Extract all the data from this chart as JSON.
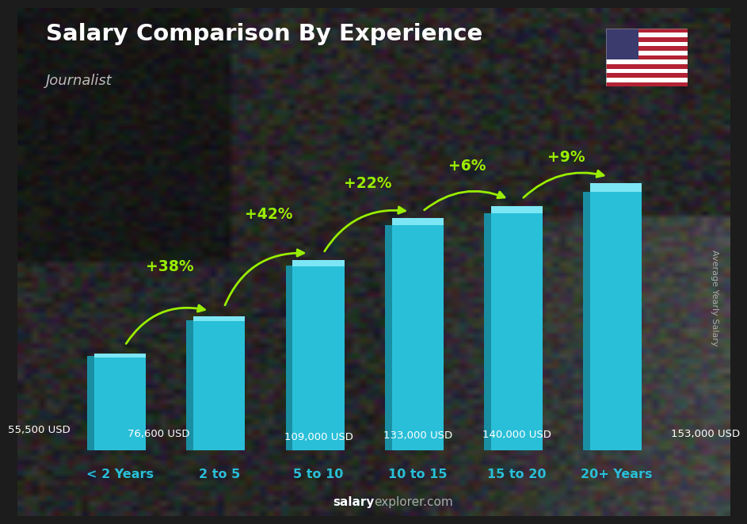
{
  "title": "Salary Comparison By Experience",
  "subtitle": "Journalist",
  "categories": [
    "< 2 Years",
    "2 to 5",
    "5 to 10",
    "10 to 15",
    "15 to 20",
    "20+ Years"
  ],
  "values": [
    55500,
    76600,
    109000,
    133000,
    140000,
    153000
  ],
  "value_labels": [
    "55,500 USD",
    "76,600 USD",
    "109,000 USD",
    "133,000 USD",
    "140,000 USD",
    "153,000 USD"
  ],
  "pct_labels": [
    "+38%",
    "+42%",
    "+22%",
    "+6%",
    "+9%"
  ],
  "bar_color_face": "#29bfd8",
  "bar_color_left": "#1a8fa3",
  "bar_color_top": "#7de6f5",
  "background_color": "#1c1c1c",
  "title_color": "#ffffff",
  "subtitle_color": "#cccccc",
  "pct_color": "#99ee00",
  "category_color": "#29bfd8",
  "watermark_salary": "salary",
  "watermark_explorer": "explorer.com",
  "ylabel": "Average Yearly Salary",
  "ylim_max": 175000
}
